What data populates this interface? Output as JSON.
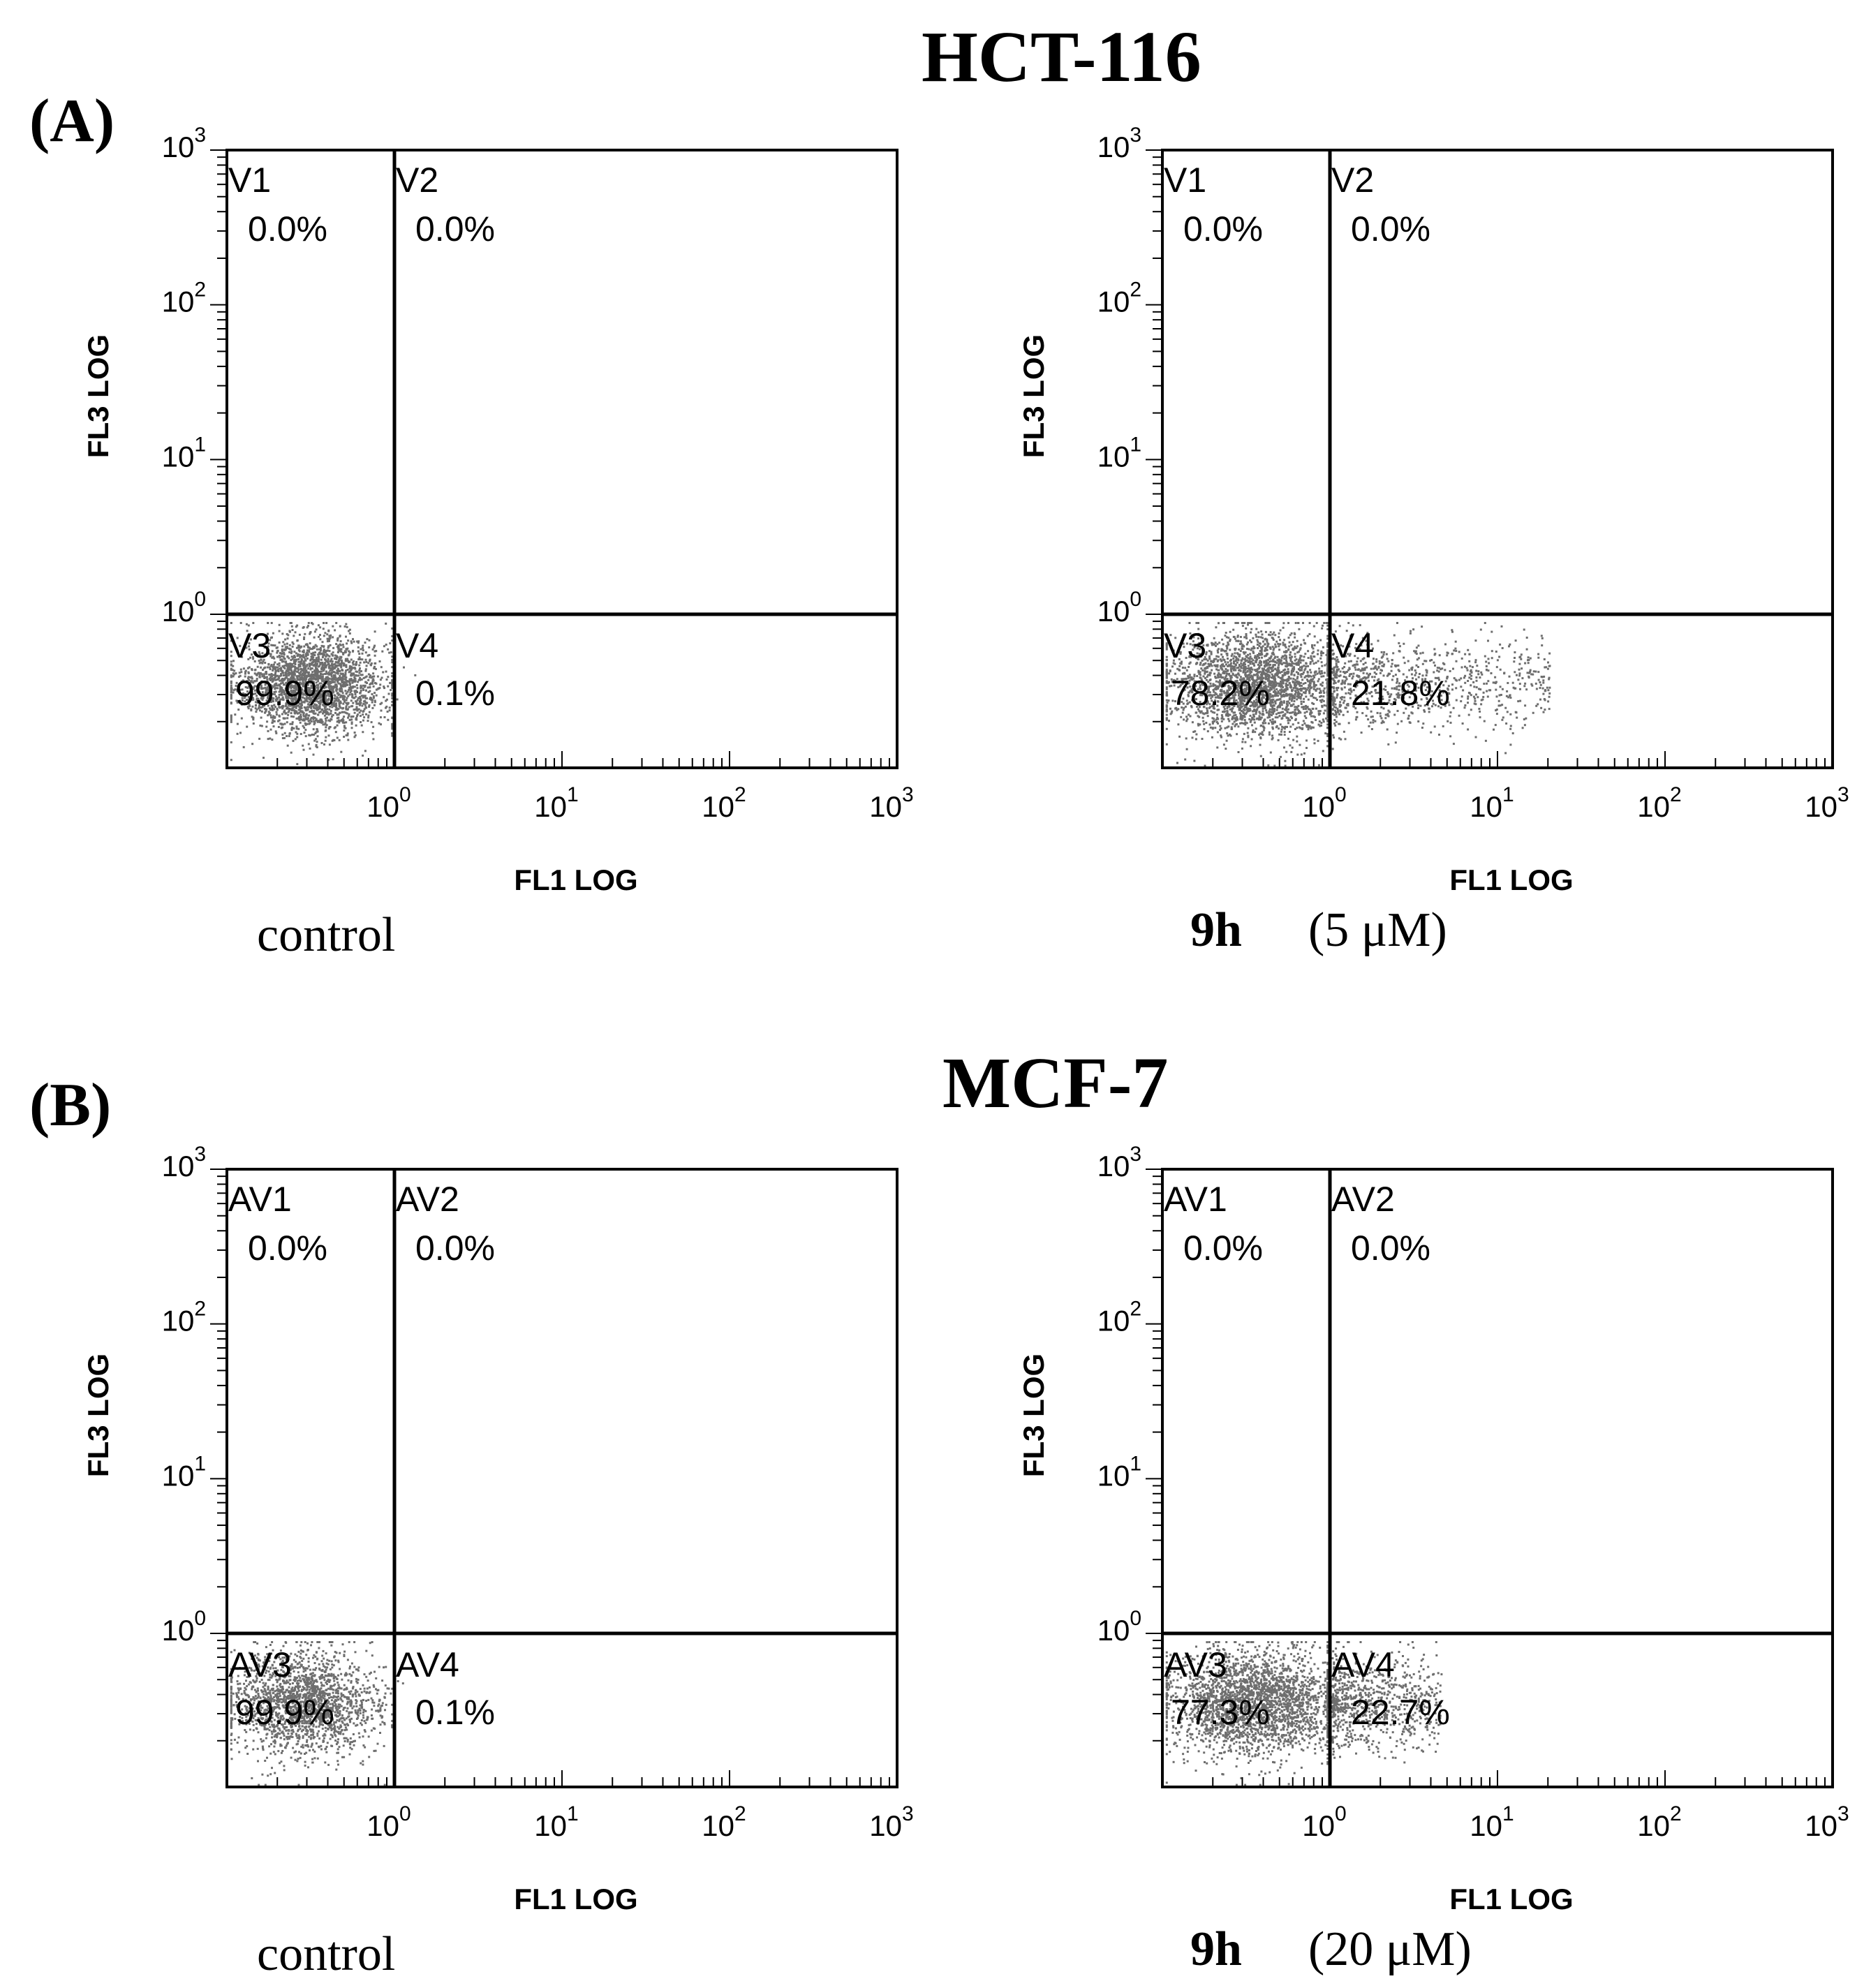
{
  "panels": [
    {
      "label": "(A)",
      "cell_line": "HCT-116",
      "plots": [
        {
          "caption": {
            "bold": "",
            "text": "control"
          },
          "xlabel": "FL1 LOG",
          "ylabel": "FL3 LOG",
          "quadrants": [
            {
              "name": "V1",
              "value": "0.0%"
            },
            {
              "name": "V2",
              "value": "0.0%"
            },
            {
              "name": "V3",
              "value": "99.9%"
            },
            {
              "name": "V4",
              "value": "0.1%"
            }
          ],
          "cluster": {
            "center_x": -0.5,
            "center_y": -0.45,
            "spread_x": 0.22,
            "spread_y": 0.16,
            "points": 2600
          },
          "tail": {
            "points": 3,
            "x_max": 0.15
          }
        },
        {
          "caption": {
            "bold": "9h",
            "text": "(5 μM)"
          },
          "xlabel": "FL1 LOG",
          "ylabel": "FL3 LOG",
          "quadrants": [
            {
              "name": "V1",
              "value": "0.0%"
            },
            {
              "name": "V2",
              "value": "0.0%"
            },
            {
              "name": "V3",
              "value": "78.2%"
            },
            {
              "name": "V4",
              "value": "21.8%"
            }
          ],
          "cluster": {
            "center_x": -0.45,
            "center_y": -0.45,
            "spread_x": 0.26,
            "spread_y": 0.17,
            "points": 2600
          },
          "tail": {
            "points": 900,
            "x_max": 1.3
          }
        }
      ]
    },
    {
      "label": "(B)",
      "cell_line": "MCF-7",
      "plots": [
        {
          "caption": {
            "bold": "",
            "text": "control"
          },
          "xlabel": "FL1 LOG",
          "ylabel": "FL3 LOG",
          "quadrants": [
            {
              "name": "AV1",
              "value": "0.0%"
            },
            {
              "name": "AV2",
              "value": "0.0%"
            },
            {
              "name": "AV3",
              "value": "99.9%"
            },
            {
              "name": "AV4",
              "value": "0.1%"
            }
          ],
          "cluster": {
            "center_x": -0.55,
            "center_y": -0.45,
            "spread_x": 0.22,
            "spread_y": 0.17,
            "points": 2000
          },
          "tail": {
            "points": 2,
            "x_max": 0.1
          }
        },
        {
          "caption": {
            "bold": "9h",
            "text": "(20 μM)"
          },
          "xlabel": "FL1 LOG",
          "ylabel": "FL3 LOG",
          "quadrants": [
            {
              "name": "AV1",
              "value": "0.0%"
            },
            {
              "name": "AV2",
              "value": "0.0%"
            },
            {
              "name": "AV3",
              "value": "77.3%"
            },
            {
              "name": "AV4",
              "value": "22.7%"
            }
          ],
          "cluster": {
            "center_x": -0.45,
            "center_y": -0.45,
            "spread_x": 0.26,
            "spread_y": 0.17,
            "points": 2600
          },
          "tail": {
            "points": 800,
            "x_max": 0.65
          }
        }
      ]
    }
  ],
  "chart_data": [
    {
      "type": "scatter",
      "title": "HCT-116 control",
      "xlabel": "FL1 LOG",
      "ylabel": "FL3 LOG",
      "xlim": [
        -1,
        3
      ],
      "ylim": [
        -1,
        3
      ],
      "x_ticks": [
        "10^0",
        "10^1",
        "10^2",
        "10^3"
      ],
      "y_ticks": [
        "10^0",
        "10^1",
        "10^2",
        "10^3"
      ],
      "quadrant_gate": {
        "x": 0,
        "y": 0
      },
      "quadrants": {
        "V1": 0.0,
        "V2": 0.0,
        "V3": 99.9,
        "V4": 0.1
      }
    },
    {
      "type": "scatter",
      "title": "HCT-116 9h (5 μM)",
      "xlabel": "FL1 LOG",
      "ylabel": "FL3 LOG",
      "xlim": [
        -1,
        3
      ],
      "ylim": [
        -1,
        3
      ],
      "x_ticks": [
        "10^0",
        "10^1",
        "10^2",
        "10^3"
      ],
      "y_ticks": [
        "10^0",
        "10^1",
        "10^2",
        "10^3"
      ],
      "quadrant_gate": {
        "x": 0,
        "y": 0
      },
      "quadrants": {
        "V1": 0.0,
        "V2": 0.0,
        "V3": 78.2,
        "V4": 21.8
      }
    },
    {
      "type": "scatter",
      "title": "MCF-7 control",
      "xlabel": "FL1 LOG",
      "ylabel": "FL3 LOG",
      "xlim": [
        -1,
        3
      ],
      "ylim": [
        -1,
        3
      ],
      "x_ticks": [
        "10^0",
        "10^1",
        "10^2",
        "10^3"
      ],
      "y_ticks": [
        "10^0",
        "10^1",
        "10^2",
        "10^3"
      ],
      "quadrant_gate": {
        "x": 0,
        "y": 0
      },
      "quadrants": {
        "AV1": 0.0,
        "AV2": 0.0,
        "AV3": 99.9,
        "AV4": 0.1
      }
    },
    {
      "type": "scatter",
      "title": "MCF-7 9h (20 μM)",
      "xlabel": "FL1 LOG",
      "ylabel": "FL3 LOG",
      "xlim": [
        -1,
        3
      ],
      "ylim": [
        -1,
        3
      ],
      "x_ticks": [
        "10^0",
        "10^1",
        "10^2",
        "10^3"
      ],
      "y_ticks": [
        "10^0",
        "10^1",
        "10^2",
        "10^3"
      ],
      "quadrant_gate": {
        "x": 0,
        "y": 0
      },
      "quadrants": {
        "AV1": 0.0,
        "AV2": 0.0,
        "AV3": 77.3,
        "AV4": 22.7
      }
    }
  ]
}
